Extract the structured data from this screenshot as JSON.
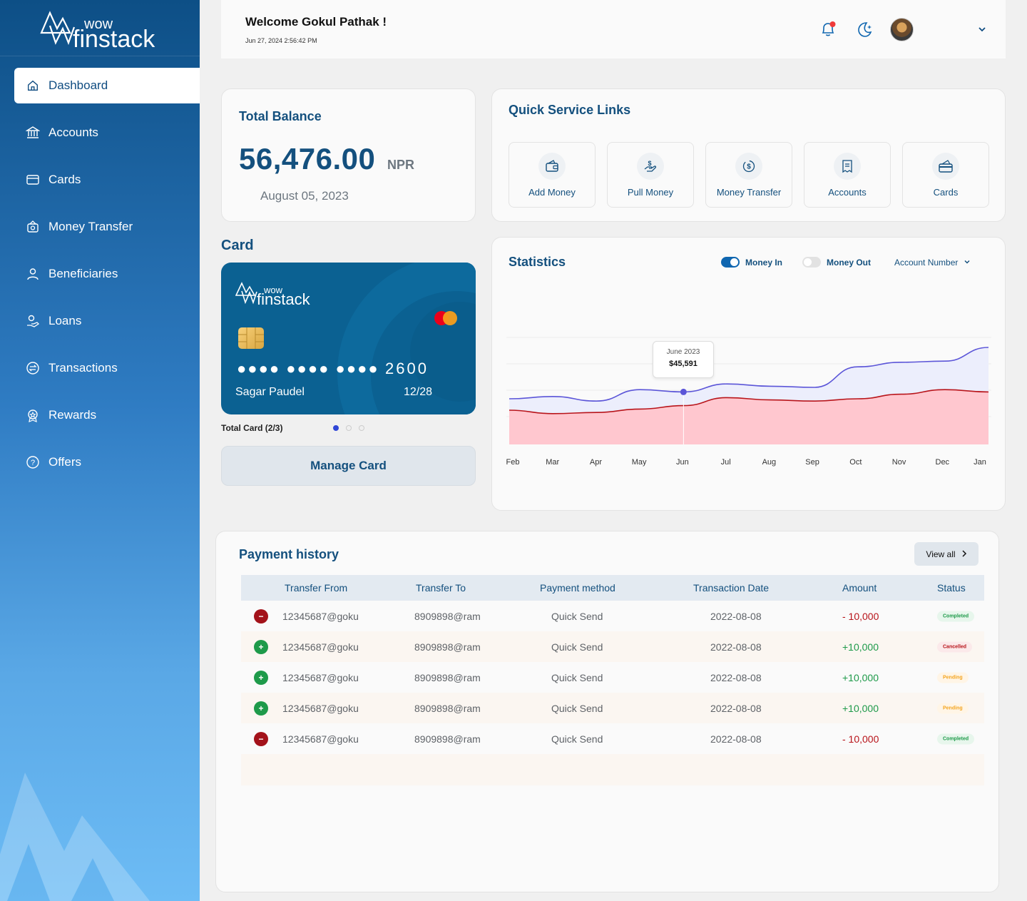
{
  "brand": {
    "top": "wow",
    "bottom": "finstack"
  },
  "sidebar": {
    "items": [
      {
        "label": "Dashboard",
        "icon": "home-icon"
      },
      {
        "label": "Accounts",
        "icon": "bank-icon"
      },
      {
        "label": "Cards",
        "icon": "card-icon"
      },
      {
        "label": "Money Transfer",
        "icon": "transfer-icon"
      },
      {
        "label": "Beneficiaries",
        "icon": "user-icon"
      },
      {
        "label": "Loans",
        "icon": "loan-icon"
      },
      {
        "label": "Transactions",
        "icon": "exchange-icon"
      },
      {
        "label": "Rewards",
        "icon": "reward-icon"
      },
      {
        "label": "Offers",
        "icon": "offer-icon"
      }
    ]
  },
  "header": {
    "welcome": "Welcome Gokul Pathak !",
    "datetime": "Jun 27, 2024 2:56:42 PM"
  },
  "balance": {
    "title": "Total Balance",
    "amount": "56,476.00",
    "currency": "NPR",
    "date": "August 05, 2023"
  },
  "quick_links": {
    "title": "Quick Service Links",
    "items": [
      {
        "label": "Add Money",
        "icon": "wallet-add-icon"
      },
      {
        "label": "Pull Money",
        "icon": "hand-money-icon"
      },
      {
        "label": "Money Transfer",
        "icon": "money-transfer-icon"
      },
      {
        "label": "Accounts",
        "icon": "receipt-icon"
      },
      {
        "label": "Cards",
        "icon": "credit-card-icon"
      }
    ]
  },
  "card": {
    "title": "Card",
    "brand_top": "wow",
    "brand_bottom": "finstack",
    "masked": "●●●● ●●●● ●●●●",
    "last4": "2600",
    "holder": "Sagar Paudel",
    "expiry": "12/28",
    "count_label": "Total Card (2/3)",
    "manage_label": "Manage Card"
  },
  "statistics": {
    "title": "Statistics",
    "money_in_label": "Money In",
    "money_in_on": true,
    "money_out_label": "Money Out",
    "money_out_on": false,
    "account_select": "Account Number",
    "tooltip_month": "June 2023",
    "tooltip_value": "$45,591"
  },
  "chart_data": {
    "type": "area",
    "x": [
      "Feb",
      "Mar",
      "Apr",
      "May",
      "Jun",
      "Jul",
      "Aug",
      "Sep",
      "Oct",
      "Nov",
      "Dec",
      "Jan"
    ],
    "series": [
      {
        "name": "Money In",
        "color": "#5b55d8",
        "values": [
          40,
          42,
          38,
          48,
          46,
          53,
          51,
          50,
          68,
          72,
          73,
          85
        ]
      },
      {
        "name": "Money Out",
        "color": "#b8141a",
        "values": [
          30,
          27,
          28,
          31,
          34,
          41,
          39,
          38,
          40,
          44,
          48,
          46
        ]
      }
    ],
    "highlight": {
      "x": "Jun",
      "label": "June 2023",
      "value": "$45,591"
    },
    "grid": true,
    "legend": "none"
  },
  "payment_history": {
    "title": "Payment history",
    "view_all": "View all",
    "columns": [
      "Transfer From",
      "Transfer To",
      "Payment method",
      "Transaction Date",
      "Amount",
      "Status"
    ],
    "rows": [
      {
        "dir": "out",
        "from": "12345687@goku",
        "to": "8909898@ram",
        "method": "Quick Send",
        "date": "2022-08-08",
        "amount": "- 10,000",
        "status": "Completed"
      },
      {
        "dir": "in",
        "from": "12345687@goku",
        "to": "8909898@ram",
        "method": "Quick Send",
        "date": "2022-08-08",
        "amount": "+10,000",
        "status": "Cancelled"
      },
      {
        "dir": "in",
        "from": "12345687@goku",
        "to": "8909898@ram",
        "method": "Quick Send",
        "date": "2022-08-08",
        "amount": "+10,000",
        "status": "Pending"
      },
      {
        "dir": "in",
        "from": "12345687@goku",
        "to": "8909898@ram",
        "method": "Quick Send",
        "date": "2022-08-08",
        "amount": "+10,000",
        "status": "Pending"
      },
      {
        "dir": "out",
        "from": "12345687@goku",
        "to": "8909898@ram",
        "method": "Quick Send",
        "date": "2022-08-08",
        "amount": "- 10,000",
        "status": "Completed"
      }
    ]
  },
  "colors": {
    "primary": "#14507e",
    "money_in": "#5b55d8",
    "money_out": "#b8141a",
    "positive": "#1e9a4a",
    "negative": "#b8141a",
    "card_bg": "#0b6192"
  }
}
